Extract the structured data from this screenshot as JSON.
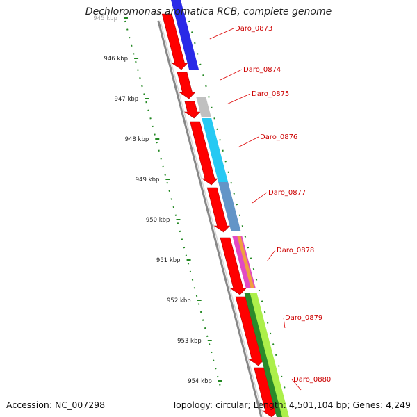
{
  "title": "Dechloromonas aromatica RCB, complete genome",
  "accession_text": "Accession: NC_007298",
  "summary_text": "Topology: circular; Length: 4,501,104 bp; Genes: 4,249",
  "ruler_ticks": [
    "945 kbp",
    "946 kbp",
    "947 kbp",
    "948 kbp",
    "949 kbp",
    "950 kbp",
    "951 kbp",
    "952 kbp",
    "953 kbp",
    "954 kbp"
  ],
  "gene_labels": [
    "Daro_0873",
    "Daro_0874",
    "Daro_0875",
    "Daro_0876",
    "Daro_0877",
    "Daro_0878",
    "Daro_0879",
    "Daro_0880"
  ],
  "colors": {
    "cds": "#ff0000",
    "backbone": "#888888",
    "ruler": "#228822",
    "label_text": "#cc0000",
    "leader": "#dd0000",
    "feature_blue": "#1f1fe6",
    "feature_gray": "#bdbdbd",
    "feature_cyan": "#1bc6f2",
    "feature_steel": "#5b8fc4",
    "feature_magenta": "#e040c0",
    "feature_orange": "#f0a040",
    "feature_lime": "#a8ee40",
    "feature_green": "#2a8a2a"
  }
}
